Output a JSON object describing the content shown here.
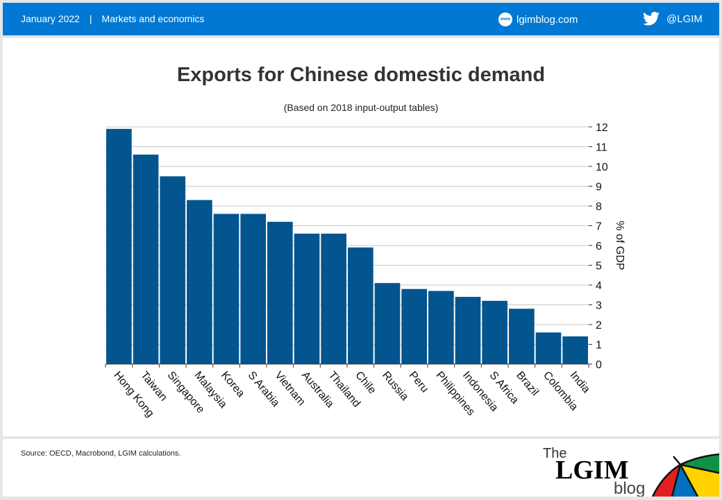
{
  "header": {
    "date": "January 2022",
    "separator": "|",
    "category": "Markets and economics",
    "website": "lgimblog.com",
    "www_icon_text": "www",
    "twitter": "@LGIM"
  },
  "chart_data": {
    "type": "bar",
    "title": "Exports for Chinese domestic demand",
    "subtitle": "(Based on 2018 input-output tables)",
    "xlabel": "",
    "ylabel": "% of GDP",
    "ylim": [
      0,
      12
    ],
    "yticks": [
      0,
      1,
      2,
      3,
      4,
      5,
      6,
      7,
      8,
      9,
      10,
      11,
      12
    ],
    "y_axis_side": "right",
    "grid": true,
    "bar_color": "#03558f",
    "categories": [
      "Hong Kong",
      "Taiwan",
      "Singapore",
      "Malaysia",
      "Korea",
      "S Arabia",
      "Vietnam",
      "Australia",
      "Thailand",
      "Chile",
      "Russia",
      "Peru",
      "Philippines",
      "Indonesia",
      "S Africa",
      "Brazil",
      "Colombia",
      "India"
    ],
    "values": [
      11.9,
      10.6,
      9.5,
      8.3,
      7.6,
      7.6,
      7.2,
      6.6,
      6.6,
      5.9,
      4.1,
      3.8,
      3.7,
      3.4,
      3.2,
      2.8,
      1.6,
      1.4
    ]
  },
  "footer": {
    "source": "Source: OECD, Macrobond, LGIM calculations.",
    "logo_the": "The",
    "logo_lgim": "LGIM",
    "logo_blog": "blog"
  }
}
